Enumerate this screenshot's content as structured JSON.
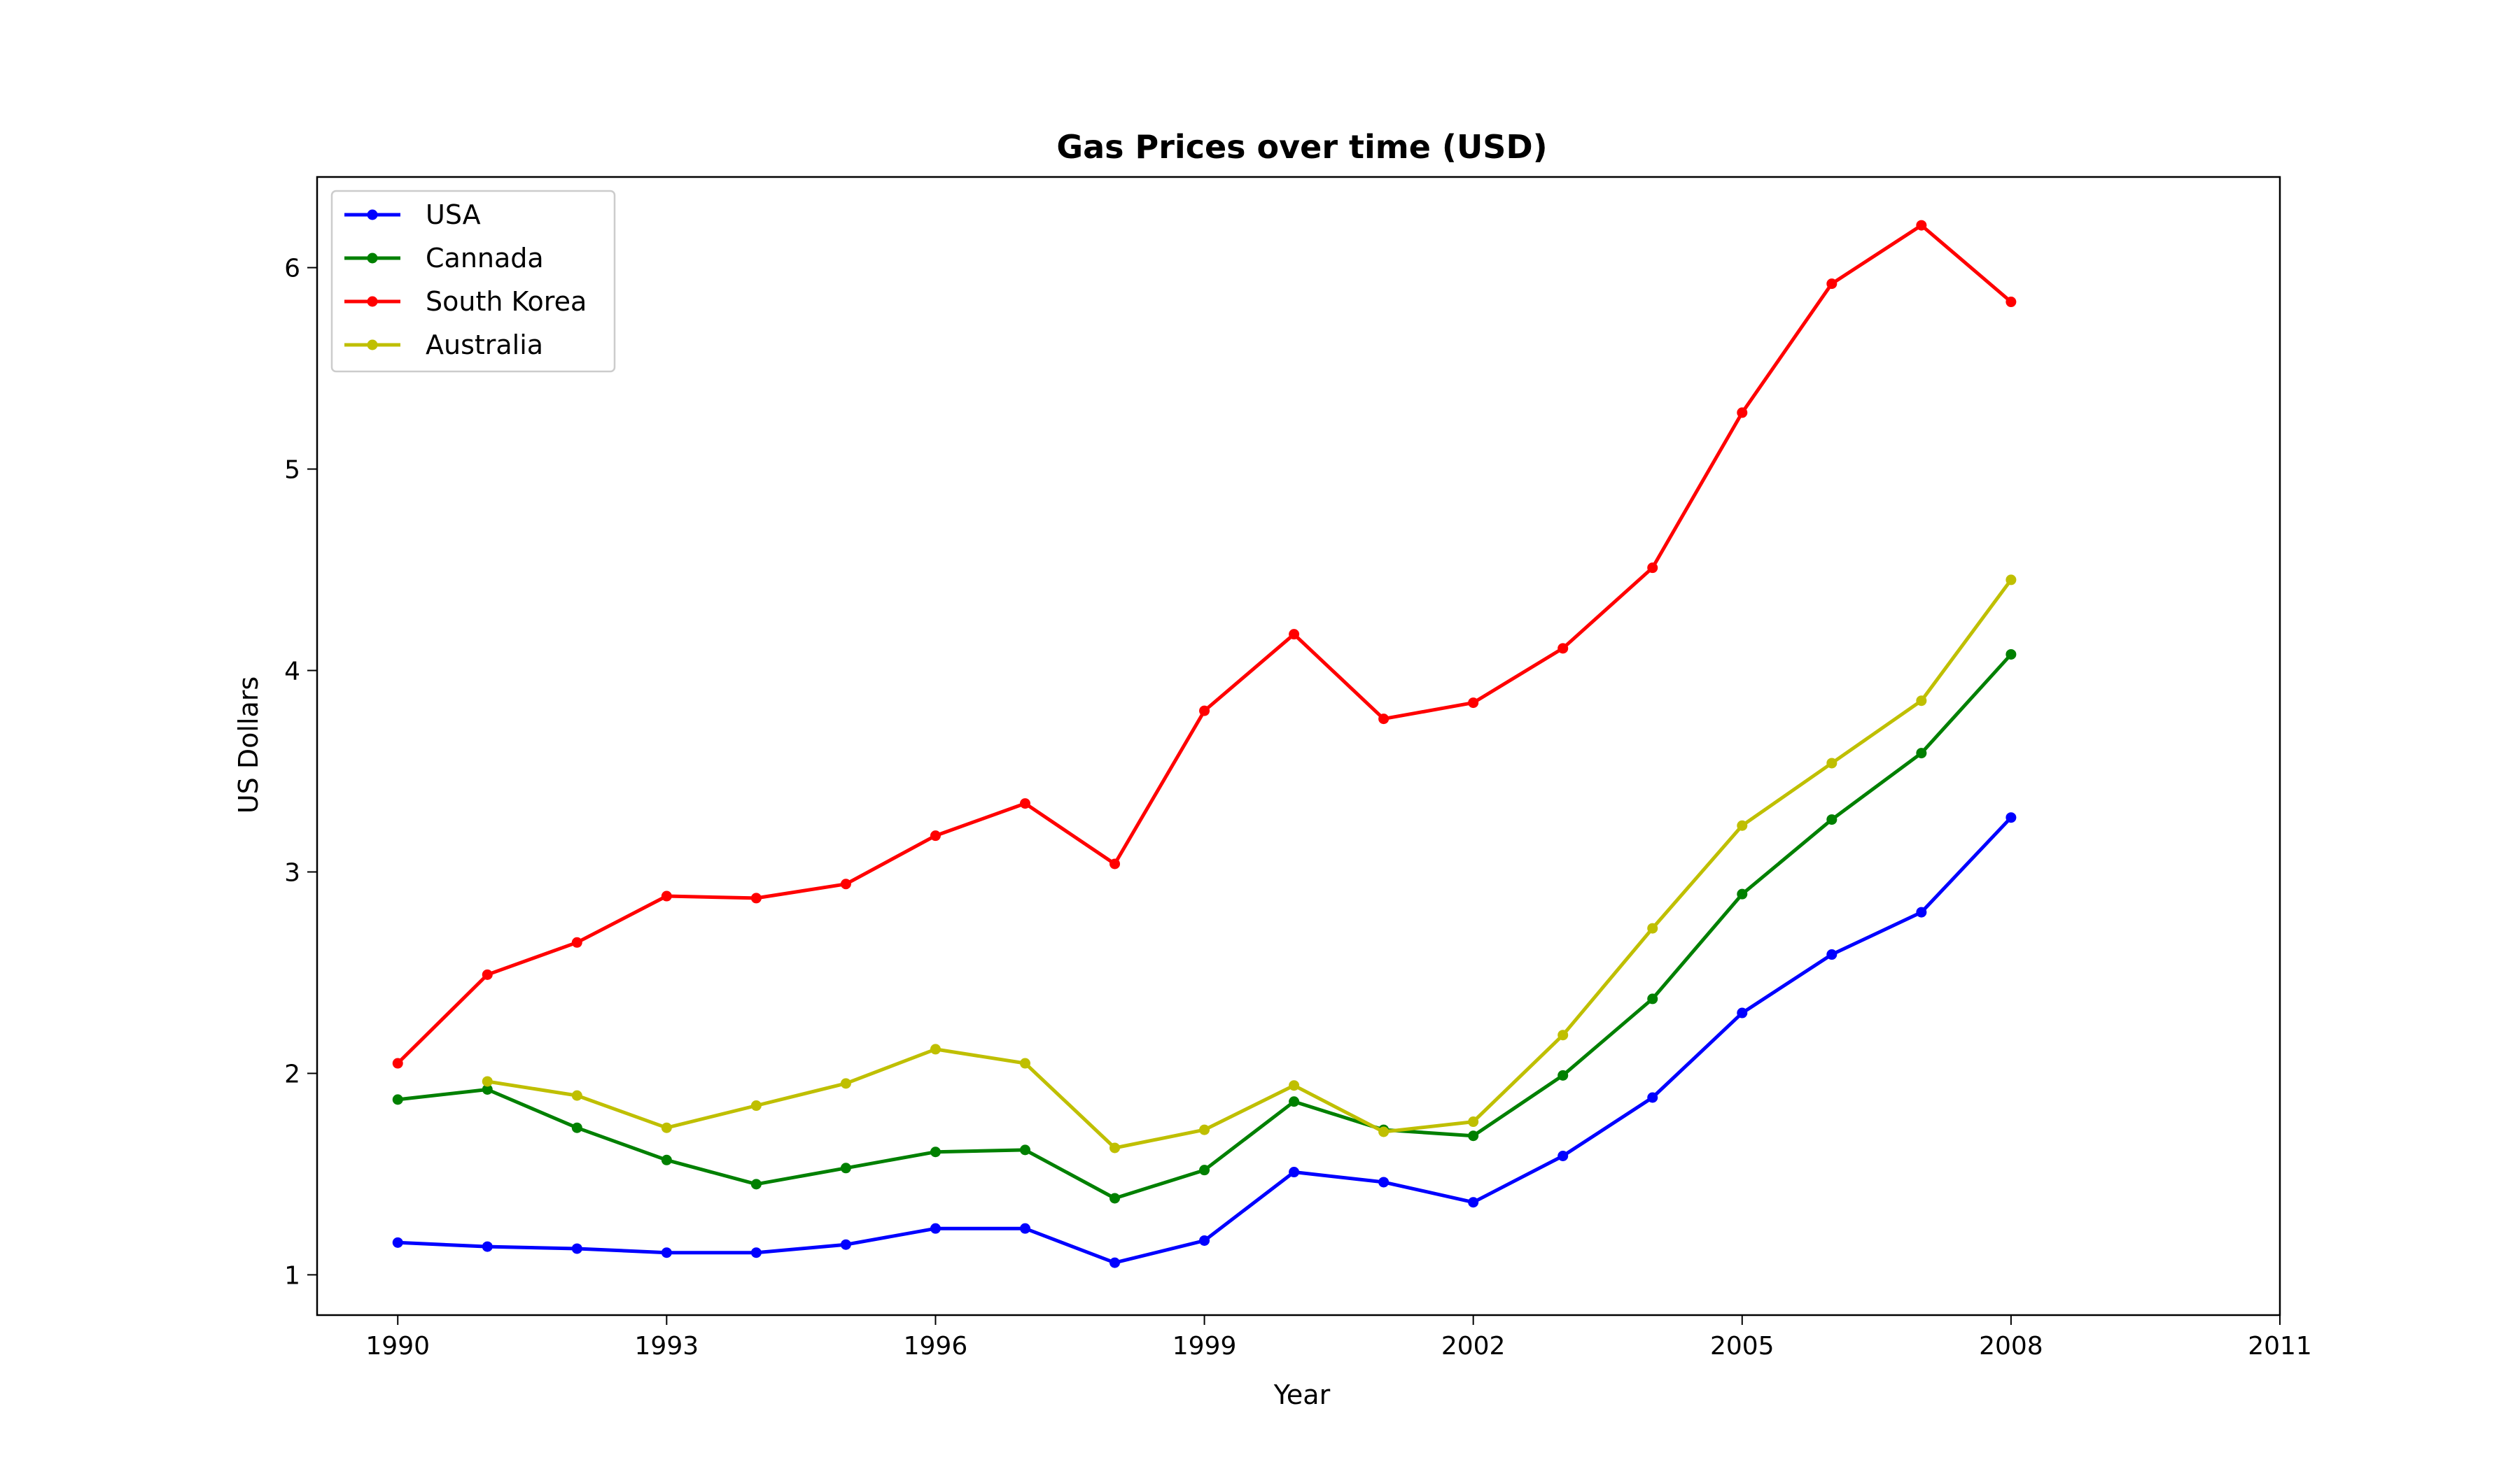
{
  "chart_data": {
    "type": "line",
    "title": "Gas Prices over time (USD)",
    "xlabel": "Year",
    "ylabel": "US Dollars",
    "xlim": [
      1989.1,
      2011
    ],
    "ylim": [
      0.8,
      6.45
    ],
    "xticks": [
      1990,
      1993,
      1996,
      1999,
      2002,
      2005,
      2008,
      2011
    ],
    "yticks": [
      1,
      2,
      3,
      4,
      5,
      6
    ],
    "grid": false,
    "legend_position": "top-left",
    "x": [
      1990,
      1991,
      1992,
      1993,
      1994,
      1995,
      1996,
      1997,
      1998,
      1999,
      2000,
      2001,
      2002,
      2003,
      2004,
      2005,
      2006,
      2007,
      2008
    ],
    "series": [
      {
        "name": "USA",
        "color": "#0000ff",
        "values": [
          1.16,
          1.14,
          1.13,
          1.11,
          1.11,
          1.15,
          1.23,
          1.23,
          1.06,
          1.17,
          1.51,
          1.46,
          1.36,
          1.59,
          1.88,
          2.3,
          2.59,
          2.8,
          3.27
        ]
      },
      {
        "name": "Cannada",
        "color": "#008000",
        "values": [
          1.87,
          1.92,
          1.73,
          1.57,
          1.45,
          1.53,
          1.61,
          1.62,
          1.38,
          1.52,
          1.86,
          1.72,
          1.69,
          1.99,
          2.37,
          2.89,
          3.26,
          3.59,
          4.08
        ]
      },
      {
        "name": "South Korea",
        "color": "#ff0000",
        "values": [
          2.05,
          2.49,
          2.65,
          2.88,
          2.87,
          2.94,
          3.18,
          3.34,
          3.04,
          3.8,
          4.18,
          3.76,
          3.84,
          4.11,
          4.51,
          5.28,
          5.92,
          6.21,
          5.83
        ]
      },
      {
        "name": "Australia",
        "color": "#bfbf00",
        "values": [
          null,
          1.96,
          1.89,
          1.73,
          1.84,
          1.95,
          2.12,
          2.05,
          1.63,
          1.72,
          1.94,
          1.71,
          1.76,
          2.19,
          2.72,
          3.23,
          3.54,
          3.85,
          4.45
        ]
      }
    ]
  }
}
